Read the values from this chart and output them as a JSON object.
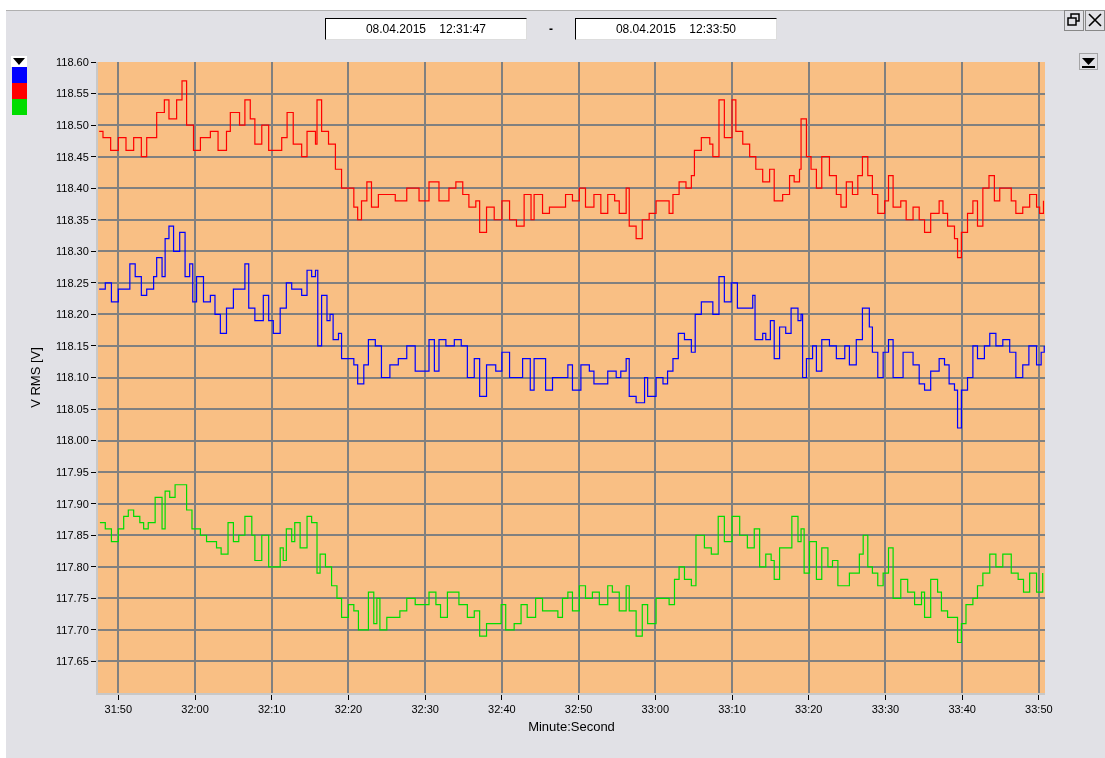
{
  "chart_data": {
    "type": "step",
    "xlabel": "Minute:Second",
    "ylabel": "V RMS [V]",
    "annotations": [
      "08.04.2015    12:31:47",
      "-",
      "08.04.2015    12:33:50"
    ],
    "xlim": [
      1907.35,
      2030.8
    ],
    "xticks": [
      {
        "value": 1910,
        "label": "31:50"
      },
      {
        "value": 1920,
        "label": "32:00"
      },
      {
        "value": 1930,
        "label": "32:10"
      },
      {
        "value": 1940,
        "label": "32:20"
      },
      {
        "value": 1950,
        "label": "32:30"
      },
      {
        "value": 1960,
        "label": "32:40"
      },
      {
        "value": 1970,
        "label": "32:50"
      },
      {
        "value": 1980,
        "label": "33:00"
      },
      {
        "value": 1990,
        "label": "33:10"
      },
      {
        "value": 2000,
        "label": "33:20"
      },
      {
        "value": 2010,
        "label": "33:30"
      },
      {
        "value": 2020,
        "label": "33:40"
      },
      {
        "value": 2030,
        "label": "33:50"
      }
    ],
    "ylim": [
      117.6,
      118.6
    ],
    "yticks": [
      {
        "value": 117.65,
        "label": "117.65"
      },
      {
        "value": 117.7,
        "label": "117.70"
      },
      {
        "value": 117.75,
        "label": "117.75"
      },
      {
        "value": 117.8,
        "label": "117.80"
      },
      {
        "value": 117.85,
        "label": "117.85"
      },
      {
        "value": 117.9,
        "label": "117.90"
      },
      {
        "value": 117.95,
        "label": "117.95"
      },
      {
        "value": 118.0,
        "label": "118.00"
      },
      {
        "value": 118.05,
        "label": "118.05"
      },
      {
        "value": 118.1,
        "label": "118.10"
      },
      {
        "value": 118.15,
        "label": "118.15"
      },
      {
        "value": 118.2,
        "label": "118.20"
      },
      {
        "value": 118.25,
        "label": "118.25"
      },
      {
        "value": 118.3,
        "label": "118.30"
      },
      {
        "value": 118.35,
        "label": "118.35"
      },
      {
        "value": 118.4,
        "label": "118.40"
      },
      {
        "value": 118.45,
        "label": "118.45"
      },
      {
        "value": 118.5,
        "label": "118.50"
      },
      {
        "value": 118.55,
        "label": "118.55"
      },
      {
        "value": 118.6,
        "label": "118.60"
      }
    ],
    "grid": true,
    "series": [
      {
        "color": "#0000ff",
        "x": [
          1907.5,
          1908.3,
          1909.1,
          1910,
          1910.9,
          1911.5,
          1912.2,
          1913,
          1913.7,
          1914.6,
          1915,
          1915.7,
          1916.1,
          1916.6,
          1917.2,
          1918,
          1918.7,
          1919.3,
          1919.7,
          1920.2,
          1921.1,
          1922,
          1922.6,
          1923.3,
          1924.1,
          1925,
          1925.9,
          1926.5,
          1927,
          1927.8,
          1928.9,
          1929.6,
          1930.2,
          1931.1,
          1931.9,
          1932.6,
          1933.5,
          1933.9,
          1934.6,
          1935.2,
          1935.7,
          1936,
          1936.5,
          1937.2,
          1937.6,
          1938,
          1938.7,
          1939.1,
          1940,
          1940.7,
          1941.2,
          1942,
          1942.6,
          1943.5,
          1944.3,
          1945.4,
          1946.5,
          1947.6,
          1948.7,
          1950.5,
          1951.2,
          1951.8,
          1952.7,
          1953.8,
          1954.7,
          1955.5,
          1956.4,
          1957.1,
          1958,
          1959.2,
          1960,
          1961,
          1962,
          1962.7,
          1963.7,
          1964.2,
          1965.7,
          1966.6,
          1967.9,
          1968.6,
          1969.2,
          1970.3,
          1971.4,
          1972,
          1972.9,
          1973.8,
          1974.9,
          1975.5,
          1976.2,
          1976.6,
          1977.5,
          1978.6,
          1979,
          1980.1,
          1981,
          1981.6,
          1982.3,
          1983,
          1983.8,
          1984.7,
          1985.2,
          1986,
          1986.8,
          1987.5,
          1988.3,
          1989,
          1989.9,
          1990.7,
          1991.6,
          1992.5,
          1992.7,
          1993,
          1994,
          1994.4,
          1995,
          1995.5,
          1996.2,
          1997,
          1997.7,
          1998.6,
          1999,
          1999.2,
          1999.7,
          2000.5,
          2001,
          2001.7,
          2002.7,
          2003.6,
          2004.7,
          2005.3,
          2006.2,
          2007,
          2007.9,
          2008.3,
          2009,
          2009.7,
          2010.4,
          2011,
          2012.3,
          2013.6,
          2014.4,
          2015.1,
          2015.9,
          2017,
          2017.7,
          2018.3,
          2019,
          2019.4,
          2019.9,
          2020.7,
          2021.4,
          2022,
          2022.9,
          2023.6,
          2024.4,
          2025.3,
          2026.2,
          2027,
          2027.9,
          2028.7,
          2029.7,
          2030.3,
          2030.7
        ],
        "values": [
          118.24,
          118.25,
          118.22,
          118.24,
          118.24,
          118.28,
          118.26,
          118.23,
          118.24,
          118.26,
          118.29,
          118.26,
          118.32,
          118.34,
          118.3,
          118.33,
          118.26,
          118.28,
          118.22,
          118.26,
          118.22,
          118.23,
          118.2,
          118.17,
          118.21,
          118.24,
          118.24,
          118.28,
          118.21,
          118.19,
          118.23,
          118.19,
          118.17,
          118.21,
          118.25,
          118.24,
          118.24,
          118.23,
          118.27,
          118.26,
          118.27,
          118.15,
          118.23,
          118.19,
          118.2,
          118.16,
          118.17,
          118.13,
          118.13,
          118.12,
          118.09,
          118.12,
          118.16,
          118.15,
          118.1,
          118.12,
          118.13,
          118.15,
          118.11,
          118.16,
          118.11,
          118.16,
          118.15,
          118.16,
          118.15,
          118.1,
          118.13,
          118.07,
          118.12,
          118.11,
          118.14,
          118.1,
          118.1,
          118.13,
          118.08,
          118.13,
          118.08,
          118.1,
          118.1,
          118.12,
          118.08,
          118.12,
          118.11,
          118.09,
          118.09,
          118.11,
          118.1,
          118.11,
          118.13,
          118.07,
          118.06,
          118.1,
          118.07,
          118.1,
          118.09,
          118.11,
          118.13,
          118.17,
          118.16,
          118.14,
          118.2,
          118.22,
          118.22,
          118.2,
          118.26,
          118.22,
          118.25,
          118.21,
          118.21,
          118.21,
          118.23,
          118.16,
          118.17,
          118.16,
          118.19,
          118.13,
          118.18,
          118.17,
          118.21,
          118.19,
          118.2,
          118.1,
          118.13,
          118.15,
          118.11,
          118.16,
          118.15,
          118.13,
          118.15,
          118.12,
          118.16,
          118.21,
          118.18,
          118.14,
          118.1,
          118.14,
          118.16,
          118.1,
          118.14,
          118.12,
          118.09,
          118.08,
          118.11,
          118.13,
          118.12,
          118.09,
          118.08,
          118.02,
          118.08,
          118.1,
          118.15,
          118.13,
          118.15,
          118.17,
          118.15,
          118.16,
          118.14,
          118.1,
          118.12,
          118.15,
          118.12,
          118.14,
          118.15
        ]
      },
      {
        "color": "#ff0000",
        "x": [
          1907.5,
          1908,
          1909,
          1910,
          1911,
          1912,
          1913,
          1913.7,
          1914.6,
          1915,
          1916,
          1916.6,
          1917.6,
          1918.3,
          1918.9,
          1919.8,
          1920.7,
          1922,
          1923,
          1924.1,
          1924.6,
          1925.8,
          1926.5,
          1927.2,
          1927.8,
          1928.7,
          1929.6,
          1930.4,
          1931.3,
          1932,
          1932.8,
          1933.9,
          1934.6,
          1935.7,
          1935.9,
          1936.5,
          1937.4,
          1938.3,
          1939.1,
          1940,
          1940.7,
          1941.2,
          1941.7,
          1942.4,
          1943,
          1943.9,
          1945,
          1946.1,
          1947.6,
          1949.2,
          1950.5,
          1951.8,
          1953.1,
          1954,
          1954.9,
          1955.7,
          1956.6,
          1957.1,
          1958,
          1959,
          1960,
          1961,
          1961.9,
          1962.9,
          1963.8,
          1964.2,
          1965.3,
          1966.2,
          1967.3,
          1968.3,
          1969.2,
          1970.1,
          1970.9,
          1972,
          1972.9,
          1973.8,
          1974.7,
          1975.3,
          1976.2,
          1976.6,
          1977.5,
          1978.3,
          1979.2,
          1980.1,
          1980.9,
          1981.8,
          1982.3,
          1983.1,
          1984,
          1984.7,
          1985.1,
          1986,
          1987.1,
          1987.5,
          1988.3,
          1989,
          1990,
          1990.5,
          1991.4,
          1992.3,
          1993.1,
          1994,
          1994.9,
          1995.5,
          1996.6,
          1997.5,
          1998.1,
          1998.8,
          1999,
          1999.7,
          2000.3,
          2001,
          2001.7,
          2002.7,
          2003.6,
          2004.2,
          2004.9,
          2005.7,
          2006.4,
          2007,
          2007.7,
          2008.3,
          2009,
          2009.9,
          2010.4,
          2011,
          2012,
          2012.7,
          2013.6,
          2014.4,
          2015.1,
          2015.9,
          2017,
          2017.5,
          2018.1,
          2019,
          2019.4,
          2019.9,
          2020.7,
          2021.4,
          2022,
          2022.7,
          2023.5,
          2024.2,
          2024.9,
          2025.5,
          2026.4,
          2027,
          2027.9,
          2028.8,
          2029.7,
          2030.1,
          2030.6
        ],
        "values": [
          118.49,
          118.48,
          118.46,
          118.48,
          118.46,
          118.48,
          118.45,
          118.48,
          118.48,
          118.52,
          118.54,
          118.51,
          118.54,
          118.57,
          118.5,
          118.46,
          118.48,
          118.49,
          118.46,
          118.49,
          118.52,
          118.5,
          118.54,
          118.51,
          118.47,
          118.5,
          118.46,
          118.46,
          118.48,
          118.52,
          118.47,
          118.45,
          118.49,
          118.47,
          118.54,
          118.49,
          118.47,
          118.43,
          118.4,
          118.4,
          118.37,
          118.35,
          118.38,
          118.41,
          118.37,
          118.39,
          118.39,
          118.38,
          118.4,
          118.38,
          118.41,
          118.38,
          118.4,
          118.41,
          118.39,
          118.37,
          118.38,
          118.33,
          118.37,
          118.35,
          118.38,
          118.35,
          118.34,
          118.39,
          118.35,
          118.39,
          118.36,
          118.37,
          118.37,
          118.39,
          118.38,
          118.4,
          118.37,
          118.39,
          118.36,
          118.39,
          118.38,
          118.36,
          118.4,
          118.34,
          118.32,
          118.35,
          118.36,
          118.38,
          118.38,
          118.36,
          118.39,
          118.41,
          118.4,
          118.42,
          118.46,
          118.48,
          118.47,
          118.45,
          118.54,
          118.48,
          118.54,
          118.49,
          118.47,
          118.45,
          118.43,
          118.41,
          118.43,
          118.38,
          118.39,
          118.42,
          118.41,
          118.43,
          118.51,
          118.45,
          118.43,
          118.4,
          118.45,
          118.42,
          118.39,
          118.37,
          118.41,
          118.39,
          118.42,
          118.45,
          118.42,
          118.39,
          118.36,
          118.38,
          118.42,
          118.37,
          118.38,
          118.35,
          118.37,
          118.35,
          118.33,
          118.36,
          118.38,
          118.36,
          118.34,
          118.32,
          118.29,
          118.33,
          118.36,
          118.38,
          118.34,
          118.4,
          118.42,
          118.38,
          118.4,
          118.4,
          118.38,
          118.36,
          118.37,
          118.39,
          118.37,
          118.36,
          118.38
        ]
      },
      {
        "color": "#00dd00",
        "x": [
          1907.6,
          1908.3,
          1909.1,
          1910,
          1910.7,
          1911.3,
          1912,
          1912.8,
          1913.3,
          1913.9,
          1914.8,
          1915.7,
          1916.1,
          1916.7,
          1917.4,
          1918.4,
          1918.9,
          1919.6,
          1920.7,
          1921.5,
          1922.8,
          1923.4,
          1924.3,
          1925,
          1925.7,
          1926.5,
          1927.4,
          1927.8,
          1928.7,
          1929.6,
          1930.4,
          1931.1,
          1931.5,
          1931.9,
          1932.6,
          1933,
          1933.7,
          1934.6,
          1935.2,
          1935.9,
          1936.3,
          1937,
          1937.8,
          1938.5,
          1939.1,
          1940,
          1940.7,
          1941.3,
          1942,
          1942.6,
          1943.3,
          1943.7,
          1944.1,
          1945,
          1945.9,
          1946.7,
          1947.6,
          1948.7,
          1949.9,
          1950.5,
          1951.4,
          1952,
          1952.9,
          1953.8,
          1954.4,
          1955.5,
          1956.4,
          1957.1,
          1958,
          1959.2,
          1959.9,
          1960.5,
          1961.6,
          1962.5,
          1963.3,
          1964.4,
          1965.3,
          1966.6,
          1967.3,
          1967.9,
          1968.6,
          1969.2,
          1970.1,
          1970.9,
          1971.8,
          1972.7,
          1973.8,
          1974.4,
          1975.3,
          1976.2,
          1976.6,
          1977.5,
          1978.3,
          1979,
          1980.1,
          1981,
          1981.8,
          1982.5,
          1983.1,
          1983.8,
          1984.7,
          1985.3,
          1986.4,
          1987.3,
          1988.2,
          1989,
          1990,
          1991,
          1992,
          1992.9,
          1993.6,
          1994.4,
          1995.1,
          1995.5,
          1996.2,
          1997,
          1997.8,
          1998.6,
          1999,
          1999.4,
          2000.1,
          2001,
          2001.7,
          2002.5,
          2003.1,
          2003.8,
          2004.7,
          2005.3,
          2006,
          2006.6,
          2007.1,
          2007.7,
          2008.3,
          2009,
          2009.7,
          2010.4,
          2011,
          2012,
          2012.9,
          2013.8,
          2014.7,
          2015.1,
          2015.9,
          2016.8,
          2017.3,
          2018.1,
          2018.8,
          2019.4,
          2019.9,
          2020.5,
          2021.4,
          2022,
          2022.7,
          2023.6,
          2024.4,
          2025.3,
          2026.4,
          2027.3,
          2028,
          2028.8,
          2029.7,
          2030.5
        ],
        "values": [
          117.87,
          117.86,
          117.84,
          117.86,
          117.88,
          117.89,
          117.88,
          117.87,
          117.86,
          117.87,
          117.91,
          117.86,
          117.92,
          117.91,
          117.93,
          117.93,
          117.89,
          117.86,
          117.85,
          117.84,
          117.83,
          117.82,
          117.87,
          117.84,
          117.85,
          117.88,
          117.85,
          117.81,
          117.85,
          117.8,
          117.8,
          117.83,
          117.81,
          117.86,
          117.84,
          117.87,
          117.83,
          117.88,
          117.87,
          117.79,
          117.82,
          117.8,
          117.77,
          117.75,
          117.72,
          117.74,
          117.73,
          117.7,
          117.7,
          117.76,
          117.71,
          117.75,
          117.7,
          117.72,
          117.72,
          117.73,
          117.75,
          117.74,
          117.74,
          117.76,
          117.74,
          117.72,
          117.76,
          117.76,
          117.74,
          117.72,
          117.73,
          117.69,
          117.71,
          117.71,
          117.74,
          117.7,
          117.71,
          117.74,
          117.72,
          117.75,
          117.73,
          117.73,
          117.72,
          117.75,
          117.76,
          117.73,
          117.77,
          117.75,
          117.76,
          117.74,
          117.77,
          117.76,
          117.73,
          117.77,
          117.73,
          117.69,
          117.74,
          117.71,
          117.75,
          117.75,
          117.74,
          117.78,
          117.8,
          117.78,
          117.77,
          117.85,
          117.83,
          117.82,
          117.88,
          117.84,
          117.88,
          117.85,
          117.83,
          117.86,
          117.8,
          117.82,
          117.81,
          117.78,
          117.83,
          117.83,
          117.88,
          117.84,
          117.86,
          117.79,
          117.84,
          117.78,
          117.83,
          117.8,
          117.81,
          117.77,
          117.77,
          117.79,
          117.79,
          117.82,
          117.85,
          117.8,
          117.79,
          117.77,
          117.79,
          117.83,
          117.75,
          117.78,
          117.76,
          117.74,
          117.76,
          117.72,
          117.78,
          117.76,
          117.73,
          117.72,
          117.72,
          117.68,
          117.71,
          117.74,
          117.75,
          117.77,
          117.79,
          117.82,
          117.8,
          117.82,
          117.79,
          117.78,
          117.76,
          117.79,
          117.76,
          117.79
        ]
      }
    ]
  }
}
